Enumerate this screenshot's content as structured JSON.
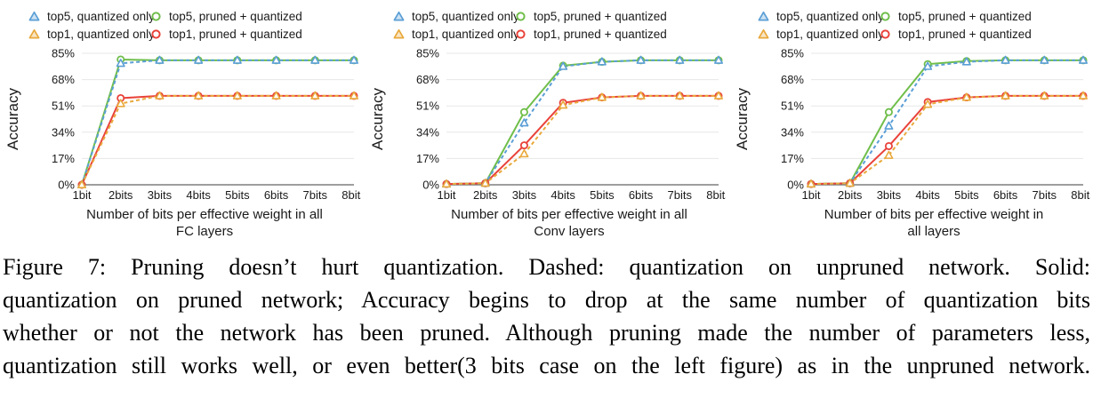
{
  "colors": {
    "top5_quantized_only": "#5B9FD6",
    "top5_pruned_quantized": "#6FBE4A",
    "top1_quantized_only": "#E9A93C",
    "top1_pruned_quantized": "#E9423A",
    "gridline": "#E7E7E7",
    "axis_line": "#7F7F7F",
    "text": "#1A1A1A"
  },
  "legend": {
    "items": [
      {
        "label": "top5, quantized only",
        "marker": "triangle",
        "color": "#5B9FD6"
      },
      {
        "label": "top5, pruned + quantized",
        "marker": "circle",
        "color": "#6FBE4A"
      },
      {
        "label": "top1, quantized only",
        "marker": "triangle",
        "color": "#E9A93C"
      },
      {
        "label": "top1, pruned + quantized",
        "marker": "circle",
        "color": "#E9423A"
      }
    ]
  },
  "chart_data": [
    {
      "type": "line",
      "title": "",
      "xlabel": "Number of bits per effective weight in all FC layers",
      "xlabel_lines": [
        "Number of bits per effective weight in all",
        "FC layers"
      ],
      "ylabel": "Accuracy",
      "categories": [
        "1bit",
        "2bits",
        "3bits",
        "4bits",
        "5bits",
        "6bits",
        "7bits",
        "8bits"
      ],
      "yticks": [
        "0%",
        "17%",
        "34%",
        "51%",
        "68%",
        "85%"
      ],
      "ylim": [
        0,
        85
      ],
      "grid": true,
      "legend_position": "top",
      "series": [
        {
          "name": "top5, quantized only",
          "marker": "triangle",
          "line": "dashed",
          "color": "#5B9FD6",
          "values": [
            0,
            78.5,
            80.5,
            80.5,
            80.5,
            80.5,
            80.5,
            80.5
          ]
        },
        {
          "name": "top5, pruned + quantized",
          "marker": "circle",
          "line": "solid",
          "color": "#6FBE4A",
          "values": [
            0,
            81,
            80.5,
            80.5,
            80.5,
            80.5,
            80.5,
            80.5
          ]
        },
        {
          "name": "top1, quantized only",
          "marker": "triangle",
          "line": "dashed",
          "color": "#E9A93C",
          "values": [
            0,
            52.5,
            57.5,
            57.5,
            57.5,
            57.5,
            57.5,
            57.5
          ]
        },
        {
          "name": "top1, pruned + quantized",
          "marker": "circle",
          "line": "solid",
          "color": "#E9423A",
          "values": [
            0,
            56,
            57.5,
            57.5,
            57.5,
            57.5,
            57.5,
            57.5
          ]
        }
      ]
    },
    {
      "type": "line",
      "title": "",
      "xlabel": "Number of bits per effective weight in all Conv layers",
      "xlabel_lines": [
        "Number of bits per effective weight in all",
        "Conv layers"
      ],
      "ylabel": "Accuracy",
      "categories": [
        "1bit",
        "2bits",
        "3bits",
        "4bits",
        "5bits",
        "6bits",
        "7bits",
        "8bits"
      ],
      "yticks": [
        "0%",
        "17%",
        "34%",
        "51%",
        "68%",
        "85%"
      ],
      "ylim": [
        0,
        85
      ],
      "grid": true,
      "legend_position": "top",
      "series": [
        {
          "name": "top5, quantized only",
          "marker": "triangle",
          "line": "dashed",
          "color": "#5B9FD6",
          "values": [
            0.5,
            1,
            40,
            76.5,
            79.5,
            80.5,
            80.5,
            80.5
          ]
        },
        {
          "name": "top5, pruned + quantized",
          "marker": "circle",
          "line": "solid",
          "color": "#6FBE4A",
          "values": [
            0.5,
            1,
            47,
            77,
            79.5,
            80.5,
            80.5,
            80.5
          ]
        },
        {
          "name": "top1, quantized only",
          "marker": "triangle",
          "line": "dashed",
          "color": "#E9A93C",
          "values": [
            0.5,
            1,
            20,
            51.5,
            56.5,
            57.5,
            57.5,
            57.5
          ]
        },
        {
          "name": "top1, pruned + quantized",
          "marker": "circle",
          "line": "solid",
          "color": "#E9423A",
          "values": [
            0.5,
            1,
            25.5,
            53,
            56.5,
            57.5,
            57.5,
            57.5
          ]
        }
      ]
    },
    {
      "type": "line",
      "title": "",
      "xlabel": "Number of bits per effective weight in all layers",
      "xlabel_lines": [
        "Number of bits per effective weight in",
        "all layers"
      ],
      "ylabel": "Accuracy",
      "categories": [
        "1bit",
        "2bits",
        "3bits",
        "4bits",
        "5bits",
        "6bits",
        "7bits",
        "8bits"
      ],
      "yticks": [
        "0%",
        "17%",
        "34%",
        "51%",
        "68%",
        "85%"
      ],
      "ylim": [
        0,
        85
      ],
      "grid": true,
      "legend_position": "top",
      "series": [
        {
          "name": "top5, quantized only",
          "marker": "triangle",
          "line": "dashed",
          "color": "#5B9FD6",
          "values": [
            0.5,
            1,
            38,
            76.5,
            79.5,
            80.5,
            80.5,
            80.5
          ]
        },
        {
          "name": "top5, pruned + quantized",
          "marker": "circle",
          "line": "solid",
          "color": "#6FBE4A",
          "values": [
            0.5,
            1,
            47,
            78,
            80,
            80.5,
            80.5,
            80.5
          ]
        },
        {
          "name": "top1, quantized only",
          "marker": "triangle",
          "line": "dashed",
          "color": "#E9A93C",
          "values": [
            0.5,
            1,
            19,
            52,
            56.5,
            57.5,
            57.5,
            57.5
          ]
        },
        {
          "name": "top1, pruned + quantized",
          "marker": "circle",
          "line": "solid",
          "color": "#E9423A",
          "values": [
            0.5,
            1,
            25,
            53.5,
            56.5,
            57.5,
            57.5,
            57.5
          ]
        }
      ]
    }
  ],
  "caption": {
    "lines": [
      "Figure 7: Pruning doesn’t hurt quantization. Dashed: quantization on unpruned network. Solid:",
      "quantization on pruned network; Accuracy begins to drop at the same number of quantization bits",
      "whether or not the network has been pruned. Although pruning made the number of parameters less,",
      "quantization still works well, or even better(3 bits case on the left figure) as in the unpruned network."
    ],
    "text": "Figure 7: Pruning doesn’t hurt quantization. Dashed: quantization on unpruned network. Solid: quantization on pruned network; Accuracy begins to drop at the same number of quantization bits whether or not the network has been pruned. Although pruning made the number of parameters less, quantization still works well, or even better(3 bits case on the left figure) as in the unpruned network."
  }
}
